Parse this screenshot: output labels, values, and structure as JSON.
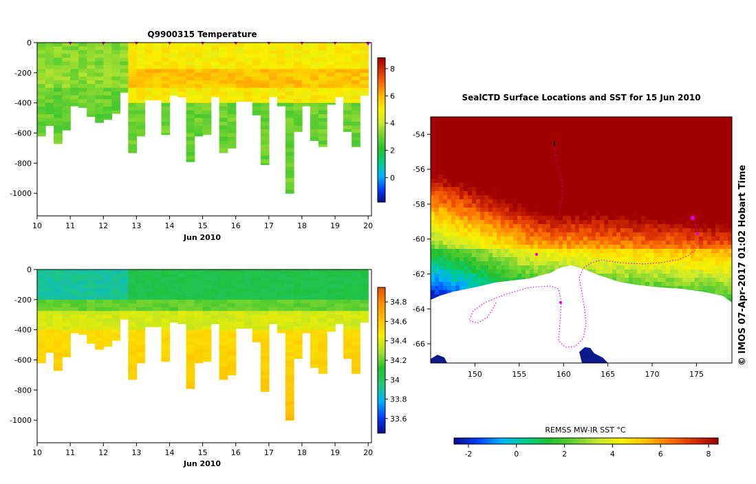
{
  "chart_data": [
    {
      "type": "heatmap",
      "title": "Q9900315  Temperature",
      "xlabel": "Jun 2010",
      "x_ticks": [
        10,
        11,
        12,
        13,
        14,
        15,
        16,
        17,
        18,
        19,
        20
      ],
      "xlim": [
        10,
        20.1
      ],
      "ylim": [
        -1150,
        0
      ],
      "y_ticks": [
        0,
        -200,
        -400,
        -600,
        -800,
        -1000
      ],
      "profile_markers_x": [
        11,
        12,
        13,
        14,
        15,
        16,
        17,
        18,
        19,
        20
      ],
      "colorbar": {
        "ticks": [
          0,
          2,
          4,
          6,
          8
        ],
        "range": [
          -1.8,
          8.8
        ]
      },
      "profiles": [
        {
          "x": 10.0,
          "depth": 620
        },
        {
          "x": 10.25,
          "depth": 550
        },
        {
          "x": 10.5,
          "depth": 670
        },
        {
          "x": 10.75,
          "depth": 580
        },
        {
          "x": 11.0,
          "depth": 420
        },
        {
          "x": 11.25,
          "depth": 430
        },
        {
          "x": 11.5,
          "depth": 490
        },
        {
          "x": 11.75,
          "depth": 530
        },
        {
          "x": 12.0,
          "depth": 510
        },
        {
          "x": 12.25,
          "depth": 470
        },
        {
          "x": 12.5,
          "depth": 330
        },
        {
          "x": 12.75,
          "depth": 730
        },
        {
          "x": 13.0,
          "depth": 620
        },
        {
          "x": 13.25,
          "depth": 380
        },
        {
          "x": 13.5,
          "depth": 380
        },
        {
          "x": 13.75,
          "depth": 610
        },
        {
          "x": 14.0,
          "depth": 350
        },
        {
          "x": 14.25,
          "depth": 360
        },
        {
          "x": 14.5,
          "depth": 790
        },
        {
          "x": 14.75,
          "depth": 620
        },
        {
          "x": 15.0,
          "depth": 610
        },
        {
          "x": 15.25,
          "depth": 360
        },
        {
          "x": 15.5,
          "depth": 730
        },
        {
          "x": 15.75,
          "depth": 700
        },
        {
          "x": 16.0,
          "depth": 390
        },
        {
          "x": 16.25,
          "depth": 390
        },
        {
          "x": 16.5,
          "depth": 480
        },
        {
          "x": 16.75,
          "depth": 810
        },
        {
          "x": 17.0,
          "depth": 360
        },
        {
          "x": 17.25,
          "depth": 420
        },
        {
          "x": 17.5,
          "depth": 1000
        },
        {
          "x": 17.75,
          "depth": 590
        },
        {
          "x": 18.0,
          "depth": 420
        },
        {
          "x": 18.25,
          "depth": 650
        },
        {
          "x": 18.5,
          "depth": 690
        },
        {
          "x": 18.75,
          "depth": 410
        },
        {
          "x": 19.0,
          "depth": 360
        },
        {
          "x": 19.25,
          "depth": 590
        },
        {
          "x": 19.5,
          "depth": 690
        },
        {
          "x": 19.75,
          "depth": 350
        }
      ]
    },
    {
      "type": "heatmap",
      "title": "",
      "xlabel": "Jun 2010",
      "x_ticks": [
        10,
        11,
        12,
        13,
        14,
        15,
        16,
        17,
        18,
        19,
        20
      ],
      "xlim": [
        10,
        20.1
      ],
      "ylim": [
        -1150,
        0
      ],
      "y_ticks": [
        0,
        -200,
        -400,
        -600,
        -800,
        -1000
      ],
      "colorbar": {
        "ticks": [
          33.6,
          33.8,
          34,
          34.2,
          34.4,
          34.6,
          34.8
        ],
        "range": [
          33.45,
          34.95
        ]
      }
    },
    {
      "type": "heatmap",
      "title": "SealCTD Surface Locations and SST for 15 Jun 2010",
      "x_ticks": [
        150,
        155,
        160,
        165,
        170,
        175
      ],
      "xlim": [
        145,
        179
      ],
      "y_ticks": [
        -54,
        -56,
        -58,
        -60,
        -62,
        -64,
        -66
      ],
      "ylim": [
        -67.1,
        -53.0
      ],
      "colorbar": {
        "label": "REMSS MW-IR SST °C",
        "ticks": [
          -2,
          0,
          2,
          4,
          6,
          8
        ],
        "range": [
          -2.6,
          8.4
        ]
      }
    }
  ],
  "credit": "©  IMOS 07-Apr-2017 01:02 Hobart Time"
}
